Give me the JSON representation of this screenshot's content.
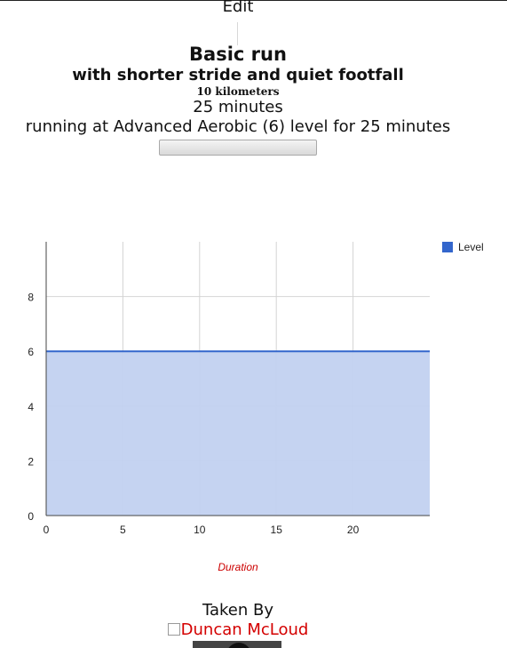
{
  "workout": {
    "edit_label": "Edit",
    "title": "Basic run",
    "subtitle": "with shorter stride and quiet footfall",
    "distance": "10 kilometers",
    "duration": "25 minutes",
    "description": "running at Advanced Aerobic (6) level for 25 minutes",
    "progress_fraction": 0
  },
  "chart_data": {
    "type": "area",
    "x": [
      0,
      25
    ],
    "series": [
      {
        "name": "Level",
        "values": [
          6,
          6
        ]
      }
    ],
    "xlabel": "Duration",
    "ylabel": "",
    "xlim": [
      0,
      25
    ],
    "ylim": [
      0,
      10
    ],
    "x_ticks": [
      0,
      5,
      10,
      15,
      20
    ],
    "y_ticks": [
      0,
      2,
      4,
      6,
      8
    ],
    "grid": true,
    "legend": "top-right",
    "colors": {
      "line": "#3366cc",
      "fill": "#c2d1f0",
      "grid": "#d4d4d4",
      "axis": "#444444",
      "xlabel": "#cc0000"
    }
  },
  "footer": {
    "taken_by_label": "Taken By",
    "user_name": "Duncan McLoud"
  }
}
